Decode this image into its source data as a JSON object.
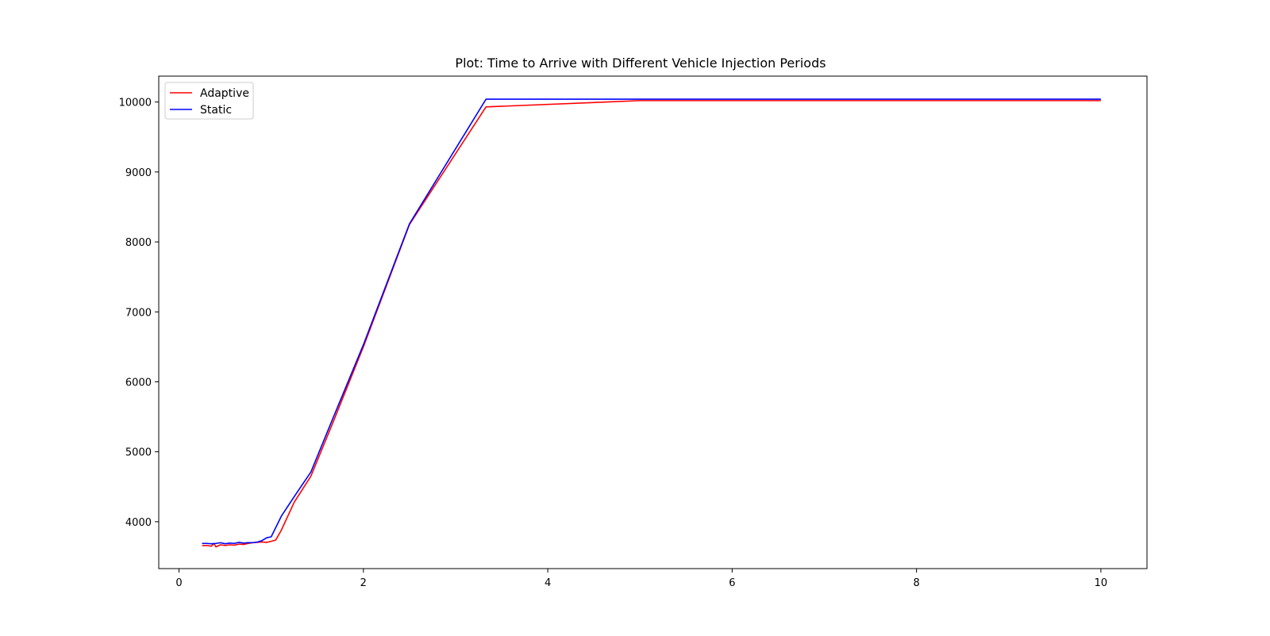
{
  "chart_data": {
    "type": "line",
    "title": "Plot: Time to Arrive with Different Vehicle Injection Periods",
    "xlabel": "",
    "ylabel": "",
    "xlim": [
      -0.22,
      10.5
    ],
    "ylim": [
      3330,
      10370
    ],
    "x_ticks": [
      0,
      2,
      4,
      6,
      8,
      10
    ],
    "y_ticks": [
      4000,
      5000,
      6000,
      7000,
      8000,
      9000,
      10000
    ],
    "grid": false,
    "legend_position": "upper-left",
    "series": [
      {
        "name": "Adaptive",
        "color": "#ff0000",
        "points": [
          [
            0.25,
            3660
          ],
          [
            0.3,
            3660
          ],
          [
            0.35,
            3650
          ],
          [
            0.38,
            3690
          ],
          [
            0.4,
            3640
          ],
          [
            0.45,
            3670
          ],
          [
            0.5,
            3660
          ],
          [
            0.55,
            3670
          ],
          [
            0.6,
            3665
          ],
          [
            0.65,
            3680
          ],
          [
            0.7,
            3675
          ],
          [
            0.75,
            3690
          ],
          [
            0.8,
            3700
          ],
          [
            0.9,
            3710
          ],
          [
            0.95,
            3705
          ],
          [
            1.0,
            3720
          ],
          [
            1.05,
            3740
          ],
          [
            1.11,
            3880
          ],
          [
            1.25,
            4280
          ],
          [
            1.43,
            4650
          ],
          [
            1.67,
            5420
          ],
          [
            2.0,
            6500
          ],
          [
            2.5,
            8250
          ],
          [
            3.33,
            9930
          ],
          [
            5.0,
            10020
          ],
          [
            10.0,
            10020
          ]
        ]
      },
      {
        "name": "Static",
        "color": "#0000ff",
        "points": [
          [
            0.25,
            3690
          ],
          [
            0.3,
            3690
          ],
          [
            0.35,
            3685
          ],
          [
            0.4,
            3690
          ],
          [
            0.45,
            3700
          ],
          [
            0.5,
            3685
          ],
          [
            0.55,
            3695
          ],
          [
            0.6,
            3690
          ],
          [
            0.65,
            3705
          ],
          [
            0.7,
            3695
          ],
          [
            0.75,
            3700
          ],
          [
            0.8,
            3700
          ],
          [
            0.85,
            3710
          ],
          [
            0.9,
            3730
          ],
          [
            0.95,
            3770
          ],
          [
            1.0,
            3785
          ],
          [
            1.11,
            4080
          ],
          [
            1.25,
            4360
          ],
          [
            1.43,
            4710
          ],
          [
            1.67,
            5480
          ],
          [
            2.0,
            6530
          ],
          [
            2.5,
            8260
          ],
          [
            3.33,
            10040
          ],
          [
            5.0,
            10040
          ],
          [
            10.0,
            10040
          ]
        ]
      }
    ]
  }
}
